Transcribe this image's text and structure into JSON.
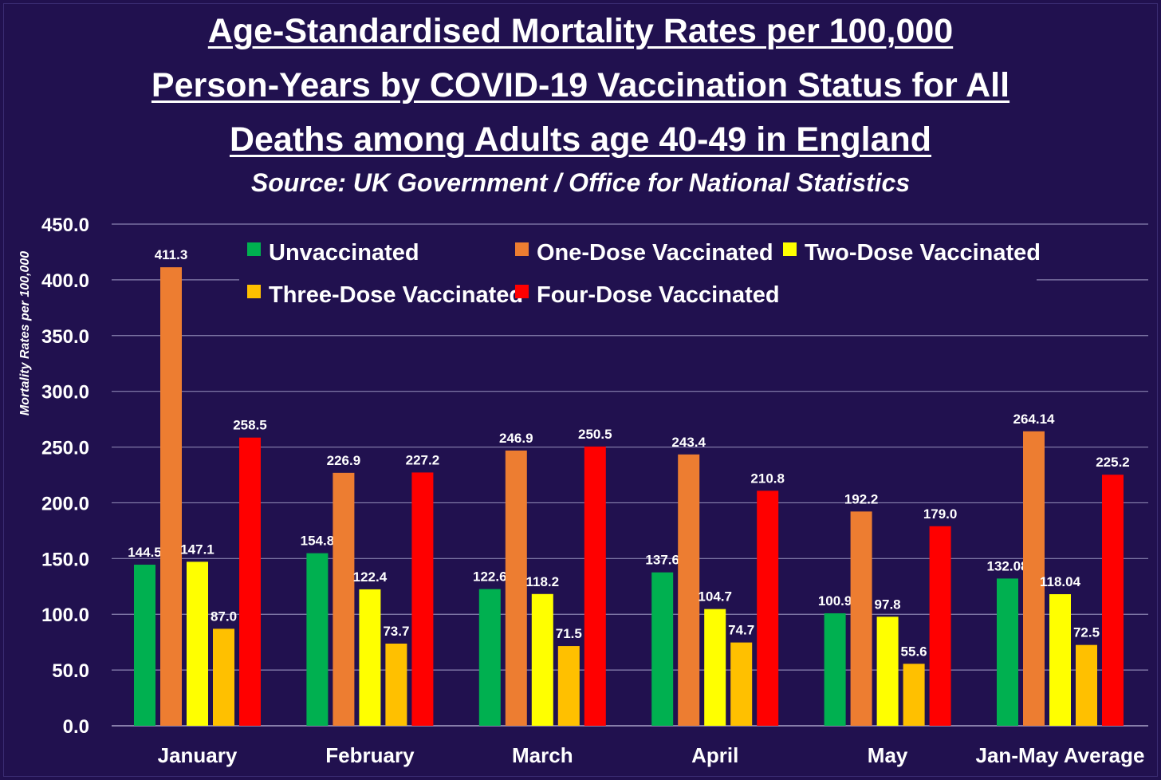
{
  "chart_data": {
    "type": "bar",
    "title": "Age-Standardised Mortality Rates per 100,000 Person-Years by COVID-19 Vaccination Status for All Deaths among Adults age 40-49 in England",
    "title_lines": [
      "Age-Standardised Mortality Rates per 100,000",
      "Person-Years by COVID-19 Vaccination Status for All",
      "Deaths among Adults age 40-49 in England"
    ],
    "subtitle": "Source: UK Government / Office for National Statistics",
    "xlabel": "",
    "ylabel": "Mortality Rates per 100,000",
    "ylim": [
      0,
      450
    ],
    "yticks": [
      "0.0",
      "50.0",
      "100.0",
      "150.0",
      "200.0",
      "250.0",
      "300.0",
      "350.0",
      "400.0",
      "450.0"
    ],
    "grid": true,
    "legend_position": "top",
    "categories": [
      "January",
      "February",
      "March",
      "April",
      "May",
      "Jan-May Average"
    ],
    "series": [
      {
        "name": "Unvaccinated",
        "color": "#00b050",
        "values": [
          144.5,
          154.8,
          122.6,
          137.6,
          100.9,
          132.08
        ],
        "labels": [
          "144.5",
          "154.8",
          "122.6",
          "137.6",
          "100.9",
          "132.08"
        ]
      },
      {
        "name": "One-Dose Vaccinated",
        "color": "#ed7d31",
        "values": [
          411.3,
          226.9,
          246.9,
          243.4,
          192.2,
          264.14
        ],
        "labels": [
          "411.3",
          "226.9",
          "246.9",
          "243.4",
          "192.2",
          "264.14"
        ]
      },
      {
        "name": "Two-Dose Vaccinated",
        "color": "#ffff00",
        "values": [
          147.1,
          122.4,
          118.2,
          104.7,
          97.8,
          118.04
        ],
        "labels": [
          "147.1",
          "122.4",
          "118.2",
          "104.7",
          "97.8",
          "118.04"
        ]
      },
      {
        "name": "Three-Dose Vaccinated",
        "color": "#ffc000",
        "values": [
          87.0,
          73.7,
          71.5,
          74.7,
          55.6,
          72.5
        ],
        "labels": [
          "87.0",
          "73.7",
          "71.5",
          "74.7",
          "55.6",
          "72.5"
        ]
      },
      {
        "name": "Four-Dose Vaccinated",
        "color": "#ff0000",
        "values": [
          258.5,
          227.2,
          250.5,
          210.8,
          179.0,
          225.2
        ],
        "labels": [
          "258.5",
          "227.2",
          "250.5",
          "210.8",
          "179.0",
          "225.2"
        ]
      }
    ]
  },
  "colors": {
    "background": "#21114f",
    "gridline": "#8a83b0",
    "text": "#ffffff"
  }
}
